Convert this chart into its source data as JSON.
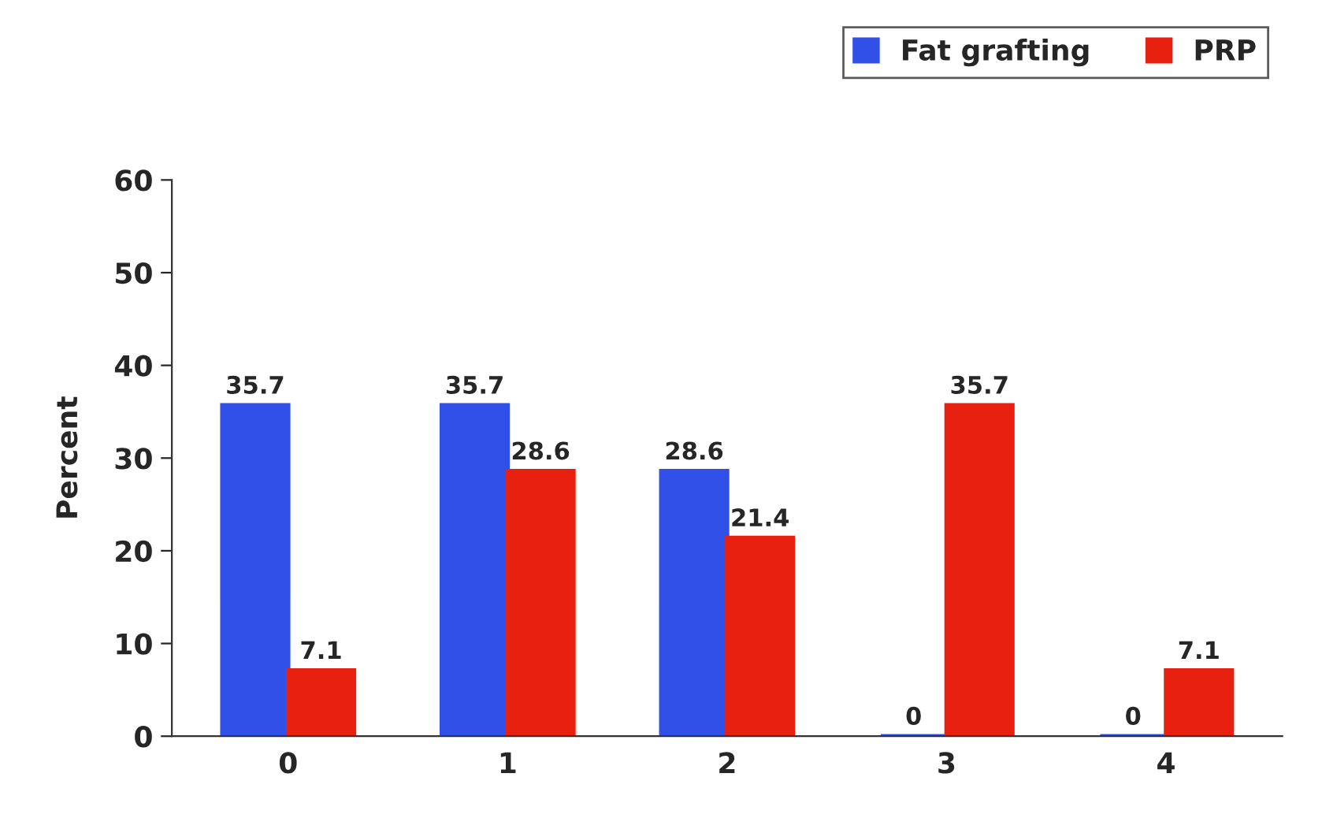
{
  "chart_data": {
    "type": "bar",
    "ylabel": "Percent",
    "categories": [
      "0",
      "1",
      "2",
      "3",
      "4"
    ],
    "series": [
      {
        "name": "Fat grafting",
        "color": "#3050e8",
        "values": [
          35.7,
          35.7,
          28.6,
          0,
          0
        ]
      },
      {
        "name": "PRP",
        "color": "#e82010",
        "values": [
          7.1,
          28.6,
          21.4,
          35.7,
          7.1
        ]
      }
    ],
    "ylim": [
      0,
      60
    ],
    "yticks": [
      0,
      10,
      20,
      30,
      40,
      50,
      60
    ],
    "data_labels": true,
    "legend": "top right",
    "grid": false
  }
}
